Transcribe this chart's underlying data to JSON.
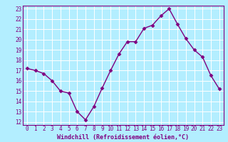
{
  "x": [
    0,
    1,
    2,
    3,
    4,
    5,
    6,
    7,
    8,
    9,
    10,
    11,
    12,
    13,
    14,
    15,
    16,
    17,
    18,
    19,
    20,
    21,
    22,
    23
  ],
  "y": [
    17.2,
    17.0,
    16.7,
    16.0,
    15.0,
    14.8,
    13.0,
    12.2,
    13.5,
    15.3,
    17.0,
    18.6,
    19.8,
    19.8,
    21.1,
    21.4,
    22.3,
    23.0,
    21.5,
    20.1,
    19.0,
    18.3,
    16.5,
    15.2
  ],
  "line_color": "#800080",
  "marker": "D",
  "marker_size": 2.5,
  "bg_color": "#b3eeff",
  "grid_color": "#ffffff",
  "xlabel": "Windchill (Refroidissement éolien,°C)",
  "xlabel_color": "#800080",
  "tick_color": "#800080",
  "ylim": [
    12,
    23
  ],
  "xlim": [
    -0.5,
    23.5
  ],
  "yticks": [
    12,
    13,
    14,
    15,
    16,
    17,
    18,
    19,
    20,
    21,
    22,
    23
  ],
  "xticks": [
    0,
    1,
    2,
    3,
    4,
    5,
    6,
    7,
    8,
    9,
    10,
    11,
    12,
    13,
    14,
    15,
    16,
    17,
    18,
    19,
    20,
    21,
    22,
    23
  ],
  "xtick_labels": [
    "0",
    "1",
    "2",
    "3",
    "4",
    "5",
    "6",
    "7",
    "8",
    "9",
    "10",
    "11",
    "12",
    "13",
    "14",
    "15",
    "16",
    "17",
    "18",
    "19",
    "20",
    "21",
    "22",
    "23"
  ],
  "line_width": 1.0,
  "tick_fontsize": 5.5,
  "xlabel_fontsize": 6.0
}
